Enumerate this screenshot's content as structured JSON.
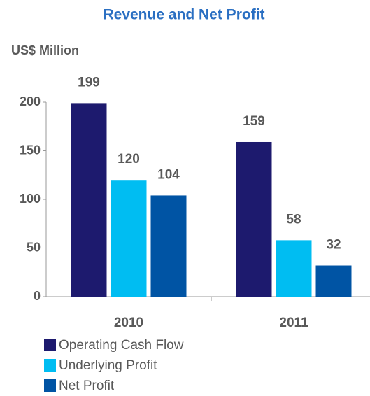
{
  "chart_data": {
    "type": "bar",
    "title": "Revenue and Net Profit",
    "y_label": "US$ Million",
    "categories": [
      "2010",
      "2011"
    ],
    "series": [
      {
        "name": "Operating Cash Flow",
        "color": "#1d1a6e",
        "values": [
          199,
          159
        ]
      },
      {
        "name": "Underlying Profit",
        "color": "#00bdf2",
        "values": [
          120,
          58
        ]
      },
      {
        "name": "Net Profit",
        "color": "#0054a4",
        "values": [
          104,
          32
        ]
      }
    ],
    "ylim": [
      0,
      200
    ],
    "yticks": [
      0,
      50,
      100,
      150,
      200
    ],
    "grid": false
  }
}
